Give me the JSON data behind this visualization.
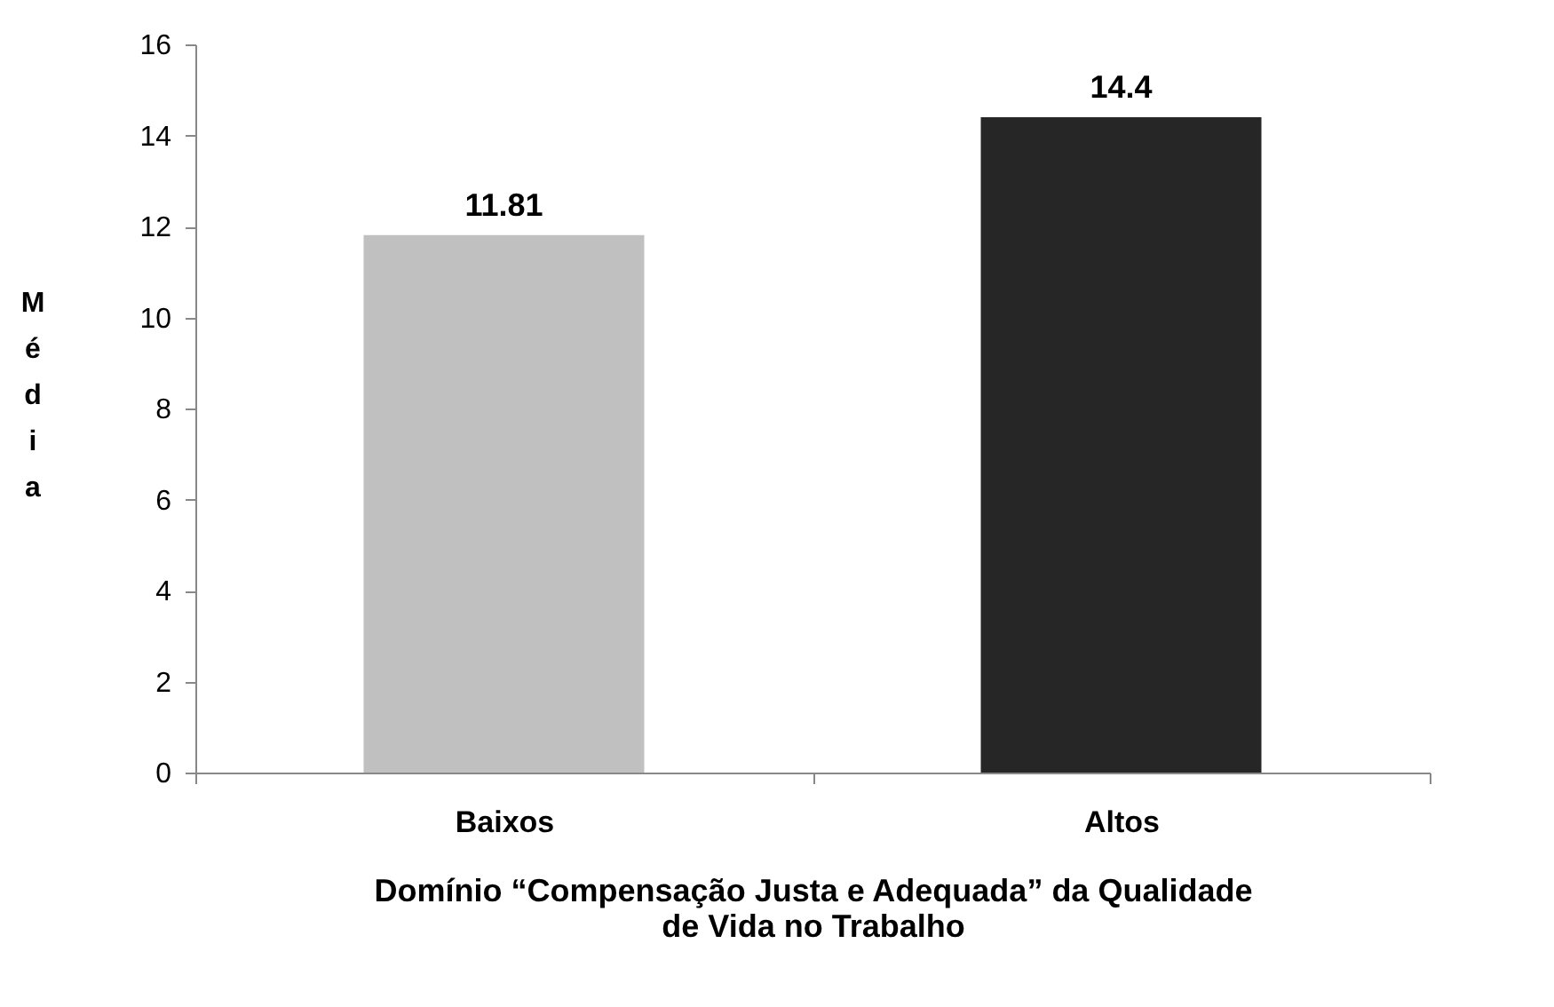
{
  "chart_data": {
    "type": "bar",
    "xlabel": "Domínio “Compensação Justa e Adequada” da Qualidade de Vida no Trabalho",
    "ylabel": "Média",
    "categories": [
      "Baixos",
      "Altos"
    ],
    "values": [
      11.81,
      14.4
    ],
    "colors": [
      "#c0c0c0",
      "#262626"
    ],
    "ylim": [
      0,
      16
    ],
    "yticks": [
      0,
      2,
      4,
      6,
      8,
      10,
      12,
      14,
      16
    ],
    "grid": false,
    "data_labels": true
  }
}
